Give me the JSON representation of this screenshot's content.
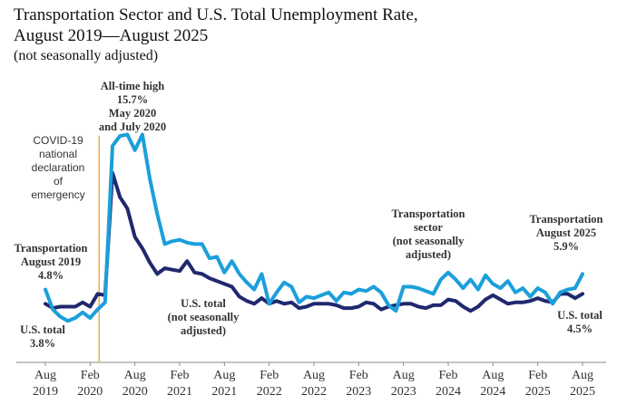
{
  "title": {
    "line1": "Transportation Sector and U.S. Total Unemployment Rate,",
    "line2": "August 2019—August 2025",
    "line3": "(not seasonally adjusted)"
  },
  "chart_data": {
    "type": "line",
    "title": "Transportation Sector and U.S. Total Unemployment Rate, August 2019—August 2025",
    "subtitle": "(not seasonally adjusted)",
    "xlabel": "",
    "ylabel": "",
    "ylim": [
      0,
      20
    ],
    "grid": false,
    "x_start": "Aug 2019",
    "x_end": "Aug 2025",
    "x_tick_labels": [
      {
        "month": "Aug",
        "year": "2019",
        "index": 0
      },
      {
        "month": "Feb",
        "year": "2020",
        "index": 6
      },
      {
        "month": "Aug",
        "year": "2020",
        "index": 12
      },
      {
        "month": "Feb",
        "year": "2021",
        "index": 18
      },
      {
        "month": "Aug",
        "year": "2021",
        "index": 24
      },
      {
        "month": "Feb",
        "year": "2022",
        "index": 30
      },
      {
        "month": "Aug",
        "year": "2022",
        "index": 36
      },
      {
        "month": "Feb",
        "year": "2023",
        "index": 42
      },
      {
        "month": "Aug",
        "year": "2023",
        "index": 48
      },
      {
        "month": "Feb",
        "year": "2024",
        "index": 54
      },
      {
        "month": "Aug",
        "year": "2024",
        "index": 60
      },
      {
        "month": "Feb",
        "year": "2025",
        "index": 66
      },
      {
        "month": "Aug",
        "year": "2025",
        "index": 72
      }
    ],
    "event_marker": {
      "index": 7.2,
      "label": [
        "COVID-19",
        "national",
        "declaration",
        "of",
        "emergency"
      ],
      "color": "#E8A33D"
    },
    "series": [
      {
        "name": "Transportation sector",
        "color": "#1B9FDB",
        "values": [
          4.8,
          3.4,
          2.9,
          2.6,
          2.8,
          3.2,
          2.8,
          3.4,
          3.9,
          14.9,
          15.6,
          15.7,
          14.6,
          15.7,
          12.6,
          10.1,
          8.0,
          8.2,
          8.3,
          8.1,
          8.0,
          8.0,
          7.0,
          7.1,
          6.0,
          6.8,
          5.9,
          5.3,
          4.8,
          5.9,
          3.8,
          4.6,
          5.3,
          5.0,
          3.9,
          4.3,
          4.2,
          4.4,
          4.6,
          4.0,
          4.6,
          4.5,
          4.8,
          4.7,
          5.0,
          4.6,
          3.7,
          3.3,
          5.0,
          5.0,
          4.9,
          4.7,
          4.5,
          5.5,
          6.0,
          5.5,
          4.9,
          5.5,
          4.8,
          5.8,
          5.2,
          4.9,
          5.4,
          4.6,
          4.9,
          4.3,
          4.9,
          4.6,
          3.8,
          4.6,
          4.8,
          4.9,
          5.9
        ]
      },
      {
        "name": "U.S. total",
        "color": "#20286E",
        "values": [
          3.8,
          3.5,
          3.6,
          3.6,
          3.6,
          3.9,
          3.6,
          4.5,
          4.4,
          13.0,
          11.3,
          10.5,
          8.5,
          7.7,
          6.7,
          5.9,
          6.3,
          6.2,
          6.1,
          6.8,
          6.0,
          5.9,
          5.6,
          5.4,
          5.2,
          5.0,
          4.3,
          4.0,
          3.8,
          4.2,
          3.8,
          4.0,
          3.8,
          3.9,
          3.5,
          3.6,
          3.8,
          3.8,
          3.8,
          3.7,
          3.5,
          3.5,
          3.6,
          3.9,
          3.8,
          3.4,
          3.6,
          3.7,
          3.8,
          3.8,
          3.6,
          3.5,
          3.7,
          3.7,
          4.1,
          4.0,
          3.6,
          3.3,
          3.6,
          4.1,
          4.4,
          4.1,
          3.8,
          3.9,
          3.9,
          4.0,
          4.2,
          4.0,
          3.9,
          4.5,
          4.5,
          4.2,
          4.5
        ]
      }
    ],
    "annotations": [
      {
        "id": "all-time-high",
        "lines": [
          "All-time high",
          "15.7%",
          "May 2020",
          "and July 2020"
        ]
      },
      {
        "id": "transport-start",
        "lines": [
          "Transportation",
          "August 2019",
          "4.8%"
        ]
      },
      {
        "id": "us-start",
        "lines": [
          "U.S. total",
          "3.8%"
        ]
      },
      {
        "id": "us-mid",
        "lines": [
          "U.S. total",
          "(not seasonally",
          "adjusted)"
        ]
      },
      {
        "id": "transport-mid",
        "lines": [
          "Transportation",
          "sector",
          "(not seasonally",
          "adjusted)"
        ]
      },
      {
        "id": "transport-end",
        "lines": [
          "Transportation",
          "August 2025",
          "5.9%"
        ]
      },
      {
        "id": "us-end",
        "lines": [
          "U.S. total",
          "4.5%"
        ]
      }
    ]
  }
}
